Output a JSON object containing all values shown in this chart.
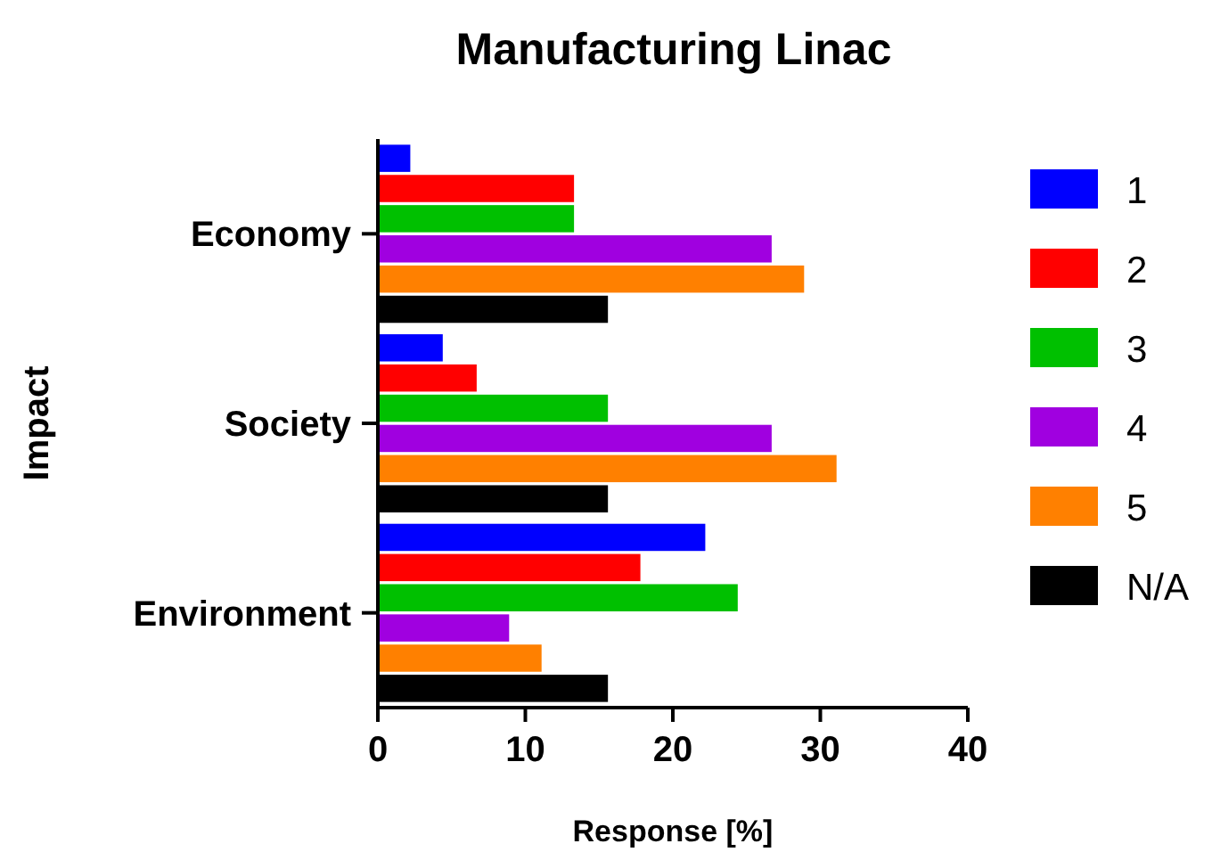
{
  "chart_data": {
    "type": "bar",
    "orientation": "horizontal",
    "title": "Manufacturing Linac",
    "xlabel": "Response [%]",
    "ylabel": "Impact",
    "categories": [
      "Economy",
      "Society",
      "Environment"
    ],
    "xlim": [
      0,
      40
    ],
    "xticks": [
      0,
      10,
      20,
      30,
      40
    ],
    "legend": "right",
    "grid": false,
    "series": [
      {
        "name": "1",
        "color": "#0000ff",
        "values": [
          2.2,
          4.4,
          22.2
        ]
      },
      {
        "name": "2",
        "color": "#ff0000",
        "values": [
          13.3,
          6.7,
          17.8
        ]
      },
      {
        "name": "3",
        "color": "#00c000",
        "values": [
          13.3,
          15.6,
          24.4
        ]
      },
      {
        "name": "4",
        "color": "#a000e0",
        "values": [
          26.7,
          26.7,
          8.9
        ]
      },
      {
        "name": "5",
        "color": "#ff8000",
        "values": [
          28.9,
          31.1,
          11.1
        ]
      },
      {
        "name": "N/A",
        "color": "#000000",
        "values": [
          15.6,
          15.6,
          15.6
        ]
      }
    ]
  }
}
